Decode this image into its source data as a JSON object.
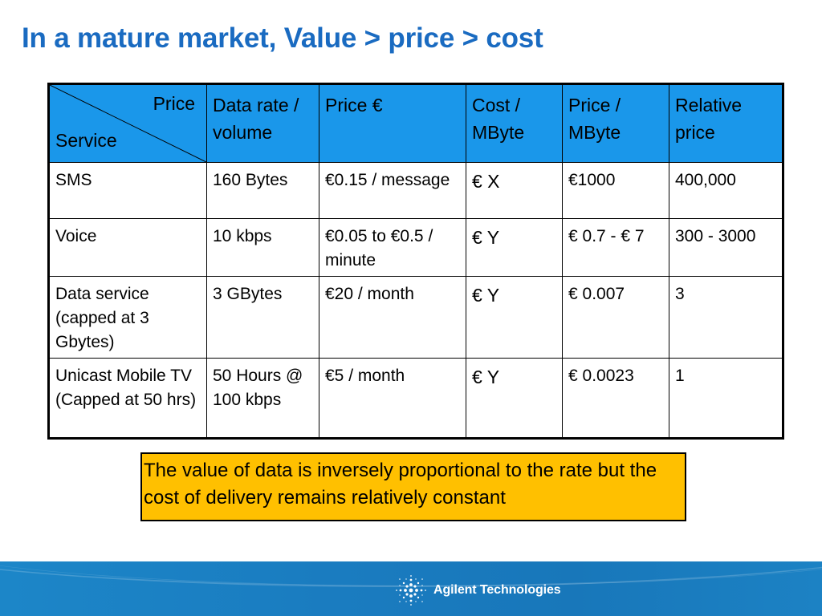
{
  "slide": {
    "title": "In a mature market, Value > price > cost",
    "note": "The value of data is inversely proportional to the rate but the cost of delivery remains relatively constant"
  },
  "table": {
    "corner": {
      "top_label": "Price",
      "bottom_label": "Service"
    },
    "headers": [
      "Data rate / volume",
      "Price €",
      "Cost / MByte",
      "Price / MByte",
      "Relative price"
    ],
    "rows": [
      {
        "service": "SMS",
        "rate": "160 Bytes",
        "price": "€0.15 / message",
        "cost": "€ X",
        "price_per_mb": "€1000",
        "relative": "400,000"
      },
      {
        "service": "Voice",
        "rate": "10 kbps",
        "price": "€0.05 to €0.5 / minute",
        "cost": "€ Y",
        "price_per_mb": "€ 0.7 - € 7",
        "relative": "300 - 3000"
      },
      {
        "service": "Data service (capped at 3 Gbytes)",
        "rate": "3 GBytes",
        "price": "€20 / month",
        "cost": "€ Y",
        "price_per_mb": "€ 0.007",
        "relative": "3"
      },
      {
        "service": "Unicast Mobile TV (Capped at 50 hrs)",
        "rate": "50 Hours @ 100 kbps",
        "price": "€5 / month",
        "cost": "€ Y",
        "price_per_mb": "€ 0.0023",
        "relative": "1"
      }
    ]
  },
  "footer": {
    "brand_name": "Agilent Technologies",
    "logo_icon": "agilent-spark-icon"
  },
  "colors": {
    "title": "#1a6bc1",
    "header_fill": "#1a97ea",
    "note_fill": "#ffc000",
    "footer_band": "#1a7cc0"
  }
}
